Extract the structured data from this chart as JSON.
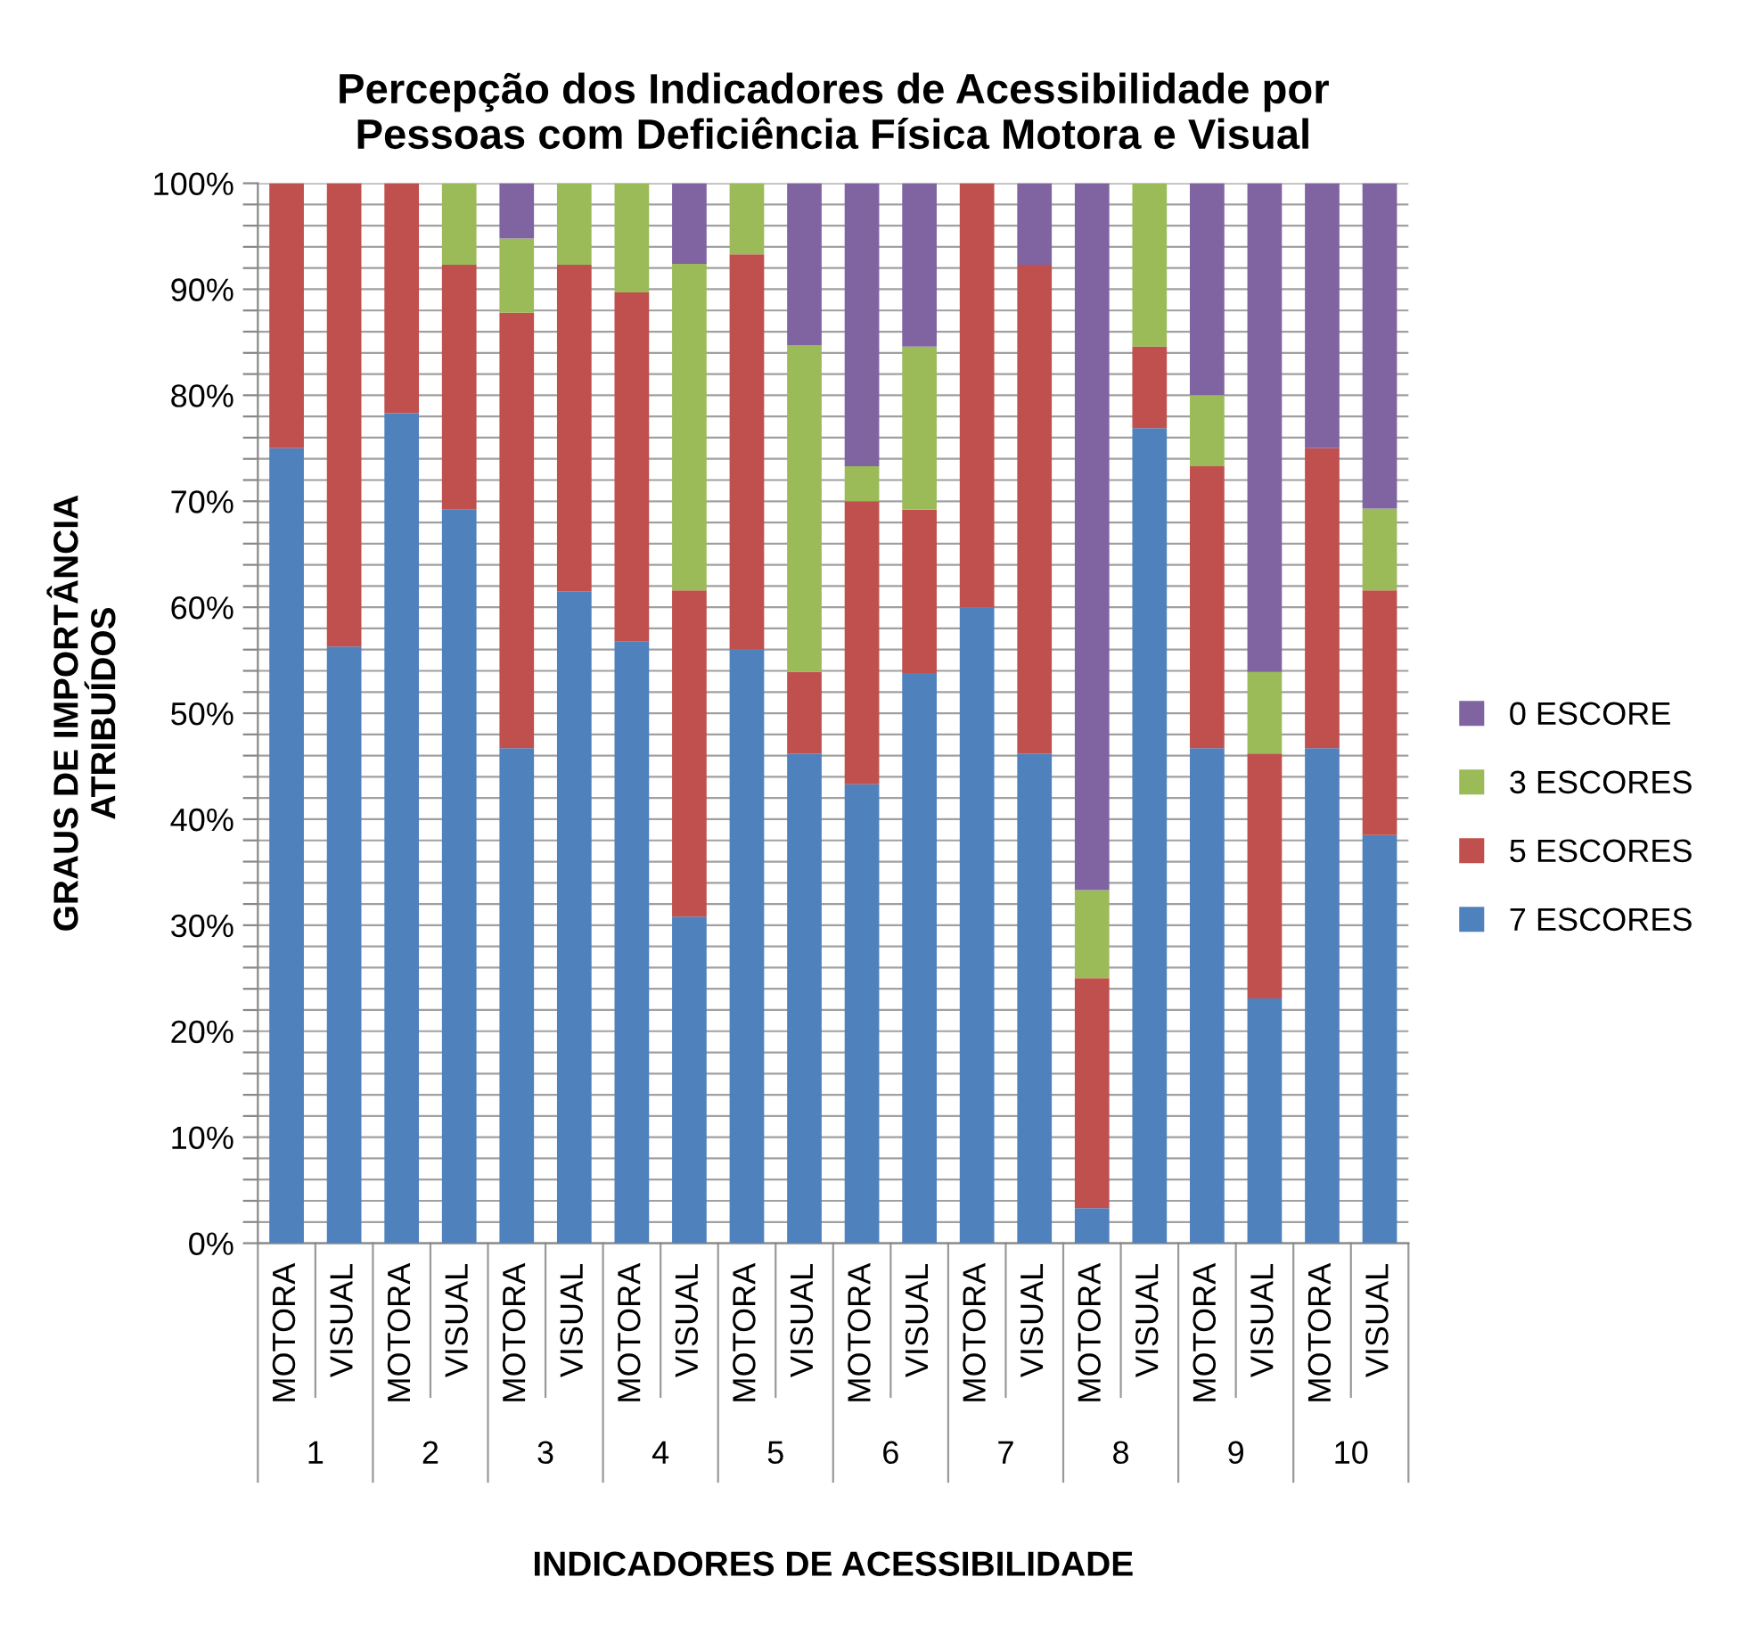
{
  "chart_data": {
    "type": "bar",
    "stacked": true,
    "title": "Percepção dos Indicadores de Acessibilidade por\nPessoas com Deficiência Física Motora e Visual",
    "xlabel": "INDICADORES DE ACESSIBILIDADE",
    "ylabel": "GRAUS DE IMPORTÂNCIA\nATRIBUÍDOS",
    "categories": [
      "MOTORA",
      "VISUAL",
      "MOTORA",
      "VISUAL",
      "MOTORA",
      "VISUAL",
      "MOTORA",
      "VISUAL",
      "MOTORA",
      "VISUAL",
      "MOTORA",
      "VISUAL",
      "MOTORA",
      "VISUAL",
      "MOTORA",
      "VISUAL",
      "MOTORA",
      "VISUAL",
      "MOTORA",
      "VISUAL"
    ],
    "annotations": [
      "1",
      "2",
      "3",
      "4",
      "5",
      "6",
      "7",
      "8",
      "9",
      "10"
    ],
    "series": [
      {
        "name": "7 ESCORES",
        "color": "#4f81bd",
        "values": [
          75,
          56.3,
          78.3,
          69.2,
          46.7,
          61.5,
          56.8,
          30.8,
          56,
          46.2,
          43.3,
          53.8,
          60,
          46.2,
          3.3,
          76.9,
          46.7,
          23.1,
          46.7,
          38.5
        ]
      },
      {
        "name": "5 ESCORES",
        "color": "#c0504d",
        "values": [
          25,
          43.7,
          21.7,
          23.1,
          41.1,
          30.8,
          32.9,
          30.8,
          37.3,
          7.7,
          26.7,
          15.4,
          40,
          46.1,
          21.7,
          7.7,
          26.6,
          23.1,
          28.3,
          23.1
        ]
      },
      {
        "name": "3 ESCORES",
        "color": "#9bbb59",
        "values": [
          0,
          0,
          0,
          7.7,
          7.0,
          7.7,
          10.3,
          30.8,
          6.7,
          30.8,
          3.3,
          15.4,
          0,
          0,
          8.3,
          15.4,
          6.7,
          7.7,
          0,
          7.7
        ]
      },
      {
        "name": "0 ESCORE",
        "color": "#8064a2",
        "values": [
          0,
          0,
          0,
          0,
          5.2,
          0,
          0,
          7.6,
          0,
          15.3,
          26.7,
          15.4,
          0,
          7.7,
          66.7,
          0,
          20,
          46.1,
          25,
          30.7
        ]
      }
    ],
    "ylim": [
      0,
      100
    ],
    "yticks": [
      {
        "value": 0,
        "label": "0%"
      },
      {
        "value": 2,
        "label": null
      },
      {
        "value": 4,
        "label": null
      },
      {
        "value": 6,
        "label": null
      },
      {
        "value": 8,
        "label": null
      },
      {
        "value": 10,
        "label": "10%"
      },
      {
        "value": 12,
        "label": null
      },
      {
        "value": 14,
        "label": null
      },
      {
        "value": 16,
        "label": null
      },
      {
        "value": 18,
        "label": null
      },
      {
        "value": 20,
        "label": "20%"
      },
      {
        "value": 22,
        "label": null
      },
      {
        "value": 24,
        "label": null
      },
      {
        "value": 26,
        "label": null
      },
      {
        "value": 28,
        "label": null
      },
      {
        "value": 30,
        "label": "30%"
      },
      {
        "value": 32,
        "label": null
      },
      {
        "value": 34,
        "label": null
      },
      {
        "value": 36,
        "label": null
      },
      {
        "value": 38,
        "label": null
      },
      {
        "value": 40,
        "label": "40%"
      },
      {
        "value": 42,
        "label": null
      },
      {
        "value": 44,
        "label": null
      },
      {
        "value": 46,
        "label": null
      },
      {
        "value": 48,
        "label": null
      },
      {
        "value": 50,
        "label": "50%"
      },
      {
        "value": 52,
        "label": null
      },
      {
        "value": 54,
        "label": null
      },
      {
        "value": 56,
        "label": null
      },
      {
        "value": 58,
        "label": null
      },
      {
        "value": 60,
        "label": "60%"
      },
      {
        "value": 62,
        "label": null
      },
      {
        "value": 64,
        "label": null
      },
      {
        "value": 66,
        "label": null
      },
      {
        "value": 68,
        "label": null
      },
      {
        "value": 70,
        "label": "70%"
      },
      {
        "value": 72,
        "label": null
      },
      {
        "value": 74,
        "label": null
      },
      {
        "value": 76,
        "label": null
      },
      {
        "value": 78,
        "label": null
      },
      {
        "value": 80,
        "label": "80%"
      },
      {
        "value": 82,
        "label": null
      },
      {
        "value": 84,
        "label": null
      },
      {
        "value": 86,
        "label": null
      },
      {
        "value": 88,
        "label": null
      },
      {
        "value": 90,
        "label": "90%"
      },
      {
        "value": 92,
        "label": null
      },
      {
        "value": 94,
        "label": null
      },
      {
        "value": 96,
        "label": null
      },
      {
        "value": 98,
        "label": null
      },
      {
        "value": 100,
        "label": "100%"
      }
    ],
    "grid": "y",
    "legend": "right"
  }
}
